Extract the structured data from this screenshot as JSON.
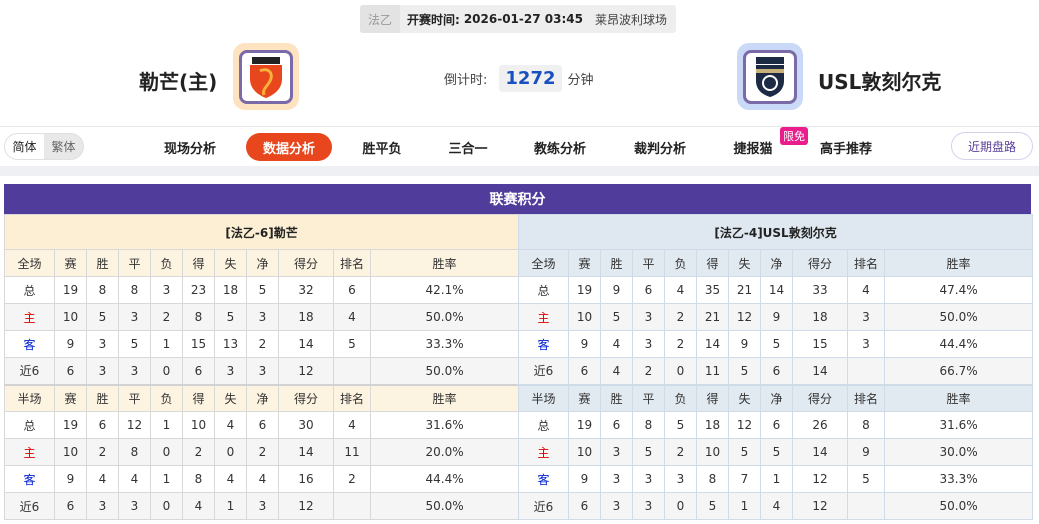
{
  "match": {
    "league": "法乙",
    "kickoff_label": "开赛时间:",
    "kickoff": "2026-01-27 03:45",
    "venue": "莱昂波利球场"
  },
  "home": {
    "name": "勒芒(主)",
    "logo_text": "LEMANS FC"
  },
  "away": {
    "name": "USL敦刻尔克",
    "logo_text": "DUNKERQUE"
  },
  "countdown": {
    "label": "倒计时:",
    "value": "1272",
    "unit": "分钟"
  },
  "lang": {
    "simplified": "简体",
    "traditional": "繁体"
  },
  "tabs": [
    "现场分析",
    "数据分析",
    "胜平负",
    "三合一",
    "教练分析",
    "裁判分析",
    "捷报猫",
    "高手推荐"
  ],
  "active_tab": "数据分析",
  "badge": "限免",
  "recent_button": "近期盘路",
  "section_title": "联赛积分",
  "colors": {
    "accent": "#e8461c",
    "header": "#503c9b",
    "home_label": "#e00000",
    "away_label": "#0020d0"
  },
  "columns": [
    "赛",
    "胜",
    "平",
    "负",
    "得",
    "失",
    "净",
    "得分",
    "排名",
    "胜率"
  ],
  "tables": [
    {
      "title": "[法乙-6]勒芒",
      "full": {
        "label": "全场",
        "rows": [
          [
            "总",
            "19",
            "8",
            "8",
            "3",
            "23",
            "18",
            "5",
            "32",
            "6",
            "42.1%"
          ],
          [
            "主",
            "10",
            "5",
            "3",
            "2",
            "8",
            "5",
            "3",
            "18",
            "4",
            "50.0%"
          ],
          [
            "客",
            "9",
            "3",
            "5",
            "1",
            "15",
            "13",
            "2",
            "14",
            "5",
            "33.3%"
          ],
          [
            "近6",
            "6",
            "3",
            "3",
            "0",
            "6",
            "3",
            "3",
            "12",
            "",
            "50.0%"
          ]
        ]
      },
      "half": {
        "label": "半场",
        "rows": [
          [
            "总",
            "19",
            "6",
            "12",
            "1",
            "10",
            "4",
            "6",
            "30",
            "4",
            "31.6%"
          ],
          [
            "主",
            "10",
            "2",
            "8",
            "0",
            "2",
            "0",
            "2",
            "14",
            "11",
            "20.0%"
          ],
          [
            "客",
            "9",
            "4",
            "4",
            "1",
            "8",
            "4",
            "4",
            "16",
            "2",
            "44.4%"
          ],
          [
            "近6",
            "6",
            "3",
            "3",
            "0",
            "4",
            "1",
            "3",
            "12",
            "",
            "50.0%"
          ]
        ]
      }
    },
    {
      "title": "[法乙-4]USL敦刻尔克",
      "full": {
        "label": "全场",
        "rows": [
          [
            "总",
            "19",
            "9",
            "6",
            "4",
            "35",
            "21",
            "14",
            "33",
            "4",
            "47.4%"
          ],
          [
            "主",
            "10",
            "5",
            "3",
            "2",
            "21",
            "12",
            "9",
            "18",
            "3",
            "50.0%"
          ],
          [
            "客",
            "9",
            "4",
            "3",
            "2",
            "14",
            "9",
            "5",
            "15",
            "3",
            "44.4%"
          ],
          [
            "近6",
            "6",
            "4",
            "2",
            "0",
            "11",
            "5",
            "6",
            "14",
            "",
            "66.7%"
          ]
        ]
      },
      "half": {
        "label": "半场",
        "rows": [
          [
            "总",
            "19",
            "6",
            "8",
            "5",
            "18",
            "12",
            "6",
            "26",
            "8",
            "31.6%"
          ],
          [
            "主",
            "10",
            "3",
            "5",
            "2",
            "10",
            "5",
            "5",
            "14",
            "9",
            "30.0%"
          ],
          [
            "客",
            "9",
            "3",
            "3",
            "3",
            "8",
            "7",
            "1",
            "12",
            "5",
            "33.3%"
          ],
          [
            "近6",
            "6",
            "3",
            "3",
            "0",
            "5",
            "1",
            "4",
            "12",
            "",
            "50.0%"
          ]
        ]
      }
    }
  ]
}
